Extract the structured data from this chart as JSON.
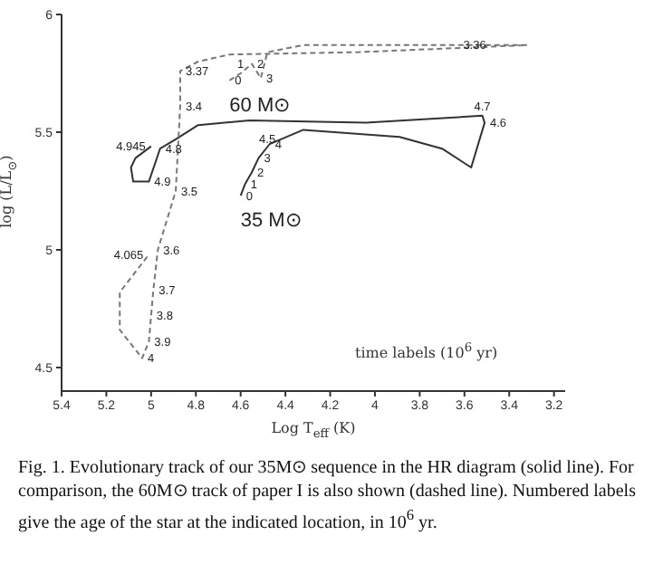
{
  "chart_data": {
    "type": "line",
    "xlabel": "Log T$_{eff}$ (K)",
    "ylabel": "log (L/L$_{⊙}$)",
    "xlim": [
      5.4,
      3.15
    ],
    "xticks": [
      5.4,
      5.2,
      5,
      4.8,
      4.6,
      4.4,
      4.2,
      4,
      3.8,
      3.6,
      3.4,
      3.2
    ],
    "ylim": [
      4.4,
      6
    ],
    "yticks": [
      4.5,
      5,
      5.5,
      6
    ],
    "grid": false,
    "legend": false,
    "marker": "none",
    "series": [
      {
        "name": "35 M⊙",
        "color": "#333333",
        "line_style": "solid",
        "x": [
          4.6,
          4.58,
          4.55,
          4.52,
          4.47,
          4.42,
          4.32,
          3.89,
          3.7,
          3.57,
          3.51,
          3.52,
          4.04,
          4.56,
          4.79,
          4.89,
          4.96,
          5.01,
          5.08,
          5.09,
          5.07,
          5.0
        ],
        "values": [
          5.23,
          5.28,
          5.33,
          5.39,
          5.45,
          5.47,
          5.51,
          5.48,
          5.43,
          5.35,
          5.54,
          5.57,
          5.54,
          5.55,
          5.53,
          5.47,
          5.43,
          5.29,
          5.29,
          5.35,
          5.39,
          5.44
        ]
      },
      {
        "name": "60 M⊙",
        "color": "#777777",
        "line_style": "dashed",
        "x": [
          4.65,
          4.6,
          4.55,
          4.51,
          4.48,
          4.32,
          3.63,
          3.32,
          4.07,
          4.65,
          4.79,
          4.87,
          4.87,
          4.89,
          4.97,
          4.99,
          5.0,
          5.01,
          5.04,
          5.14,
          5.14,
          5.01
        ],
        "values": [
          5.72,
          5.75,
          5.79,
          5.73,
          5.84,
          5.87,
          5.87,
          5.87,
          5.84,
          5.83,
          5.8,
          5.76,
          5.61,
          5.25,
          5.0,
          4.83,
          4.72,
          4.61,
          4.54,
          4.66,
          4.82,
          4.98
        ]
      }
    ],
    "annotations": [
      "time labels (10$^{6}$ yr)",
      "Fig. 1. Evolutionary track of our 35M⊙ sequence in the HR diagram (solid line). For comparison, the 60M⊙ track of paper I is also shown (dashed line). Numbered labels give the age of the star at the indicated location, in 10$^{6}$ yr.",
      {
        "text": "0",
        "x": 4.6,
        "y": 5.23
      },
      {
        "text": "1",
        "x": 4.58,
        "y": 5.28
      },
      {
        "text": "2",
        "x": 4.55,
        "y": 5.33
      },
      {
        "text": "3",
        "x": 4.52,
        "y": 5.39
      },
      {
        "text": "4",
        "x": 4.47,
        "y": 5.45
      },
      {
        "text": "4.5",
        "x": 4.42,
        "y": 5.47
      },
      {
        "text": "4.6",
        "x": 3.51,
        "y": 5.54
      },
      {
        "text": "4.7",
        "x": 3.52,
        "y": 5.57
      },
      {
        "text": "4.8",
        "x": 4.96,
        "y": 5.43
      },
      {
        "text": "4.9",
        "x": 5.01,
        "y": 5.29
      },
      {
        "text": "4.945",
        "x": 5.0,
        "y": 5.44
      },
      {
        "text": "0",
        "x": 4.65,
        "y": 5.72
      },
      {
        "text": "1",
        "x": 4.6,
        "y": 5.75
      },
      {
        "text": "2",
        "x": 4.55,
        "y": 5.79
      },
      {
        "text": "3",
        "x": 4.51,
        "y": 5.73
      },
      {
        "text": "3.36",
        "x": 3.63,
        "y": 5.87
      },
      {
        "text": "3.37",
        "x": 4.87,
        "y": 5.76
      },
      {
        "text": "3.4",
        "x": 4.87,
        "y": 5.61
      },
      {
        "text": "3.5",
        "x": 4.89,
        "y": 5.25
      },
      {
        "text": "3.6",
        "x": 4.97,
        "y": 5.0
      },
      {
        "text": "3.7",
        "x": 4.99,
        "y": 4.83
      },
      {
        "text": "3.8",
        "x": 5.0,
        "y": 4.72
      },
      {
        "text": "3.9",
        "x": 5.01,
        "y": 4.61
      },
      {
        "text": "4",
        "x": 5.04,
        "y": 4.54
      },
      {
        "text": "4.065",
        "x": 5.01,
        "y": 4.98
      }
    ]
  }
}
